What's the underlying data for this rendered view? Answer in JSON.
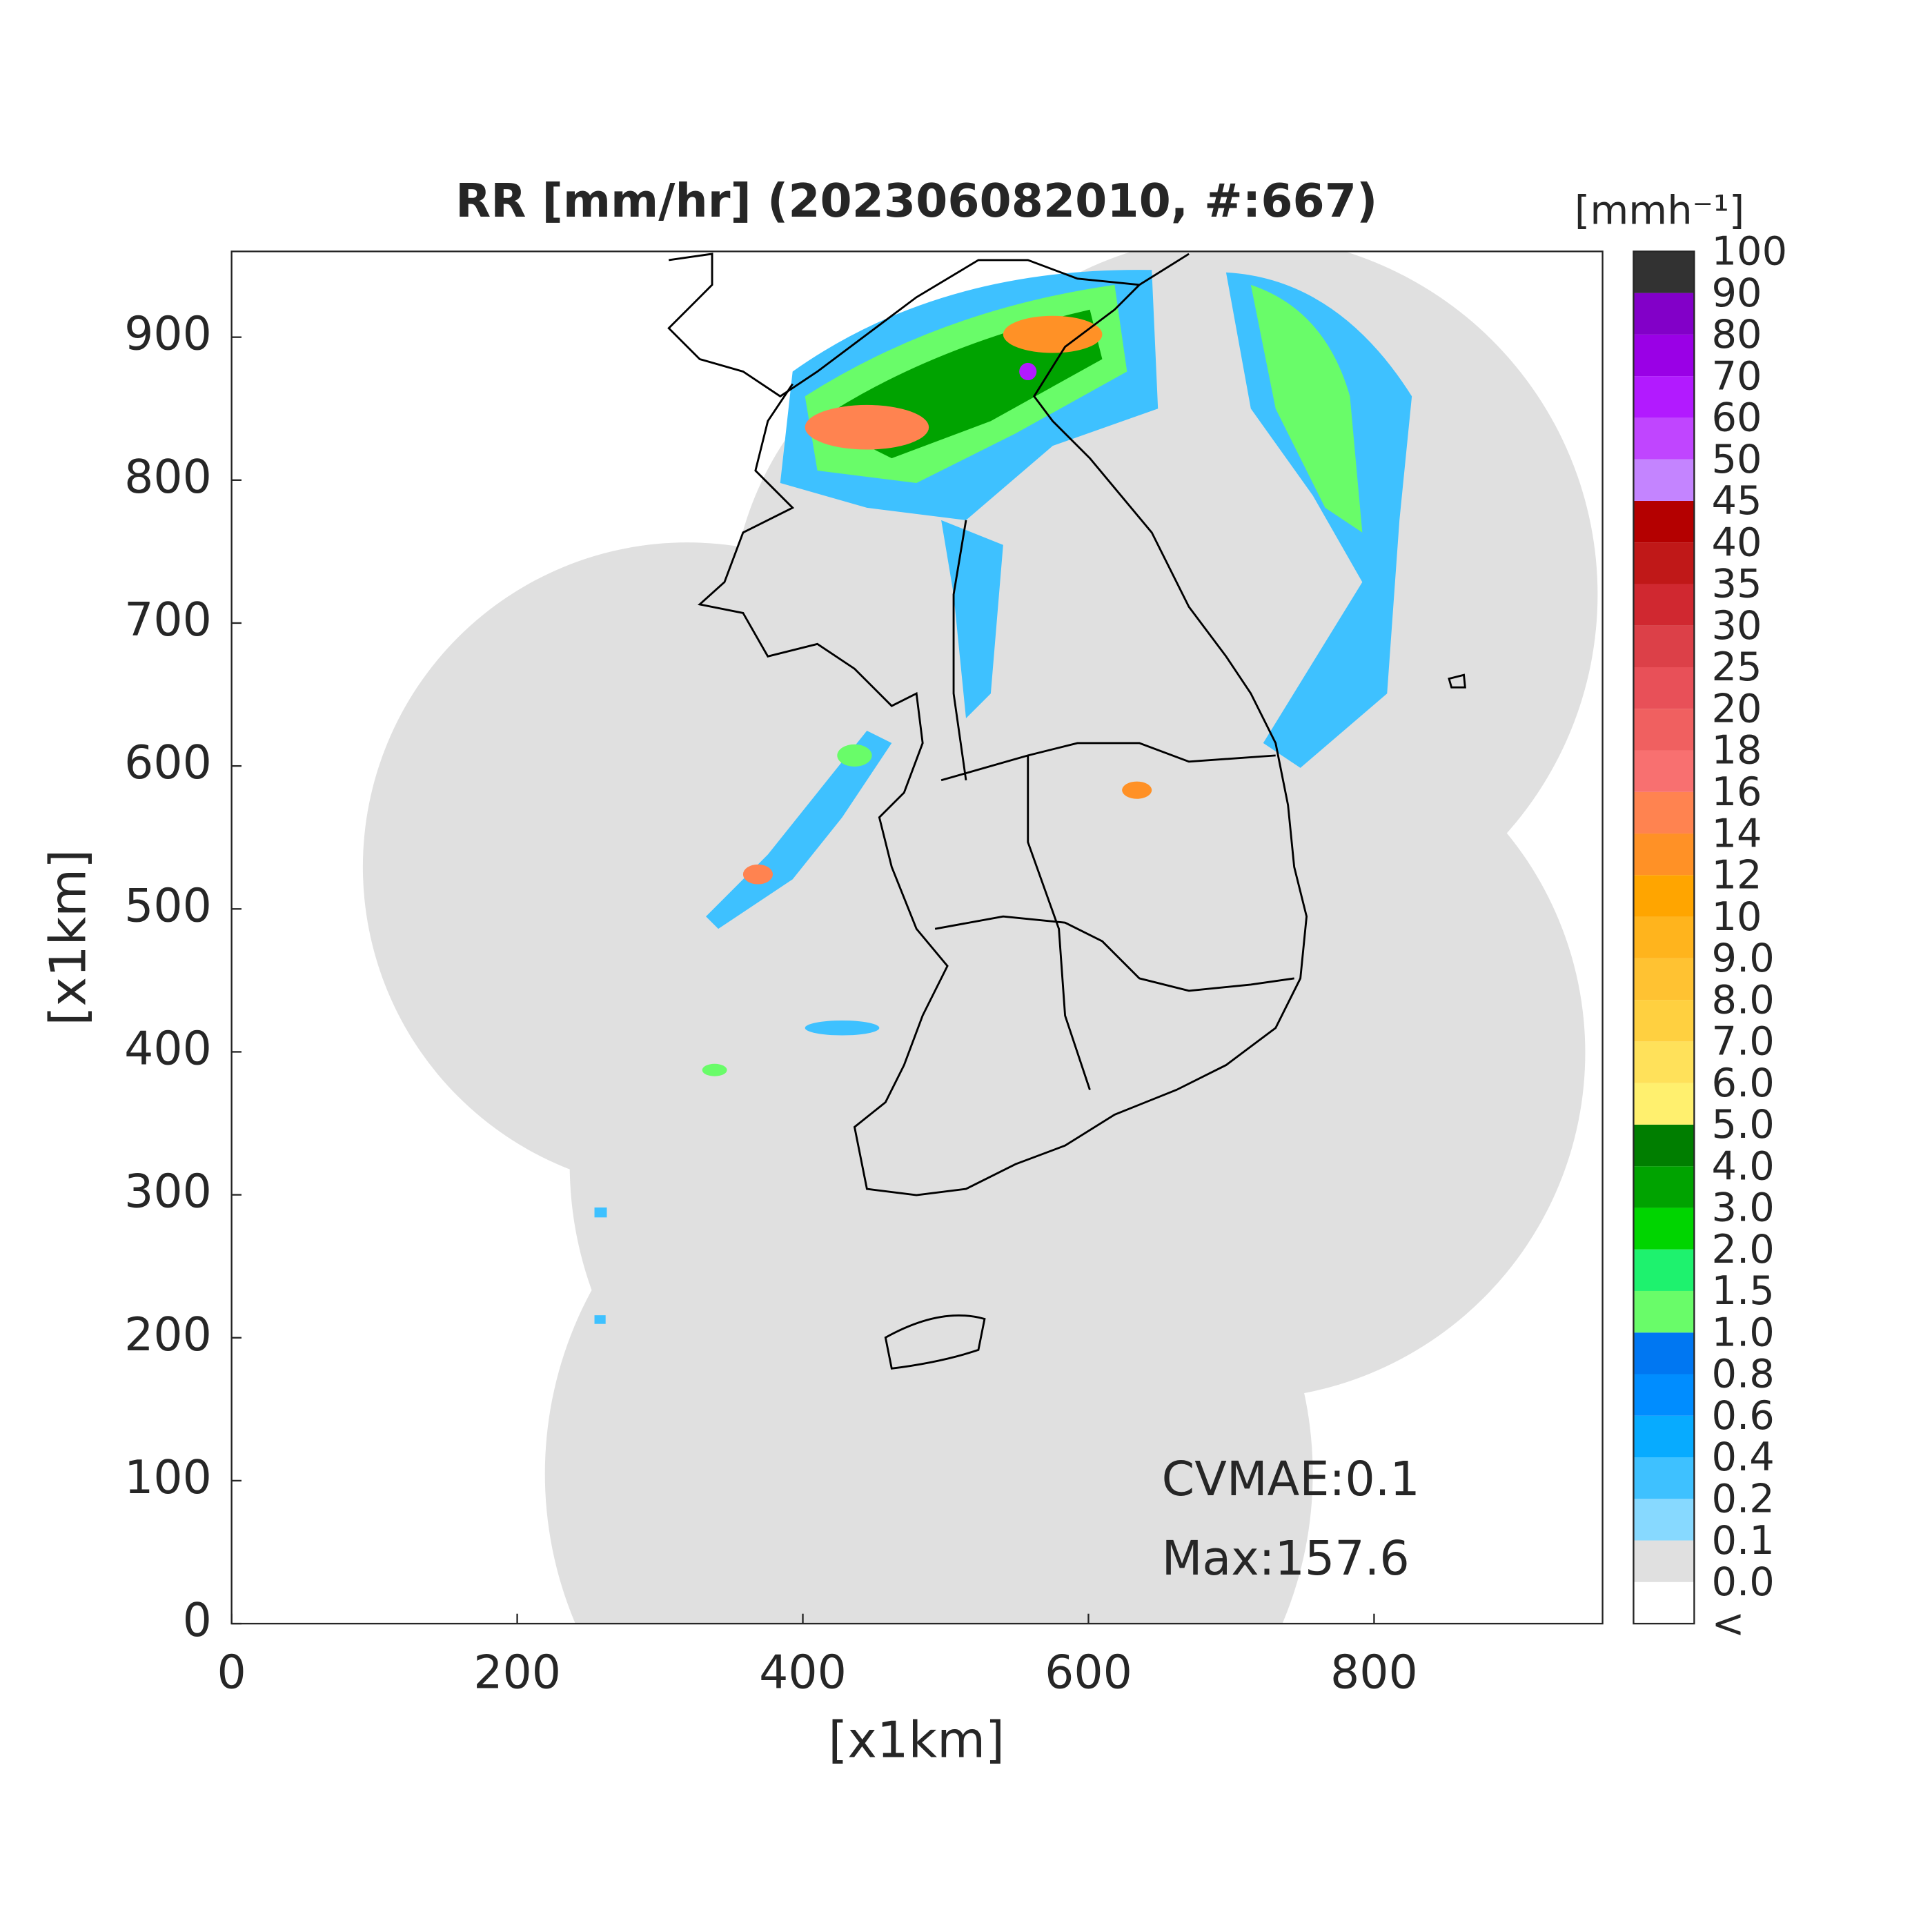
{
  "chart_data": {
    "type": "heatmap",
    "title": "RR [mm/hr] (202306082010, #:667)",
    "x_label": "[x1km]",
    "y_label": "[x1km]",
    "xlim": [
      0,
      960
    ],
    "ylim": [
      0,
      960
    ],
    "xticks": [
      0,
      200,
      400,
      600,
      800
    ],
    "yticks": [
      0,
      100,
      200,
      300,
      400,
      500,
      600,
      700,
      800,
      900
    ],
    "annotations": [
      "CVMAE:0.1",
      "Max:157.6"
    ],
    "colorbar": {
      "title": "[mmh⁻¹]",
      "ticks": [
        "<",
        "0.0",
        "0.1",
        "0.2",
        "0.4",
        "0.6",
        "0.8",
        "1.0",
        "1.5",
        "2.0",
        "3.0",
        "4.0",
        "5.0",
        "6.0",
        "7.0",
        "8.0",
        "9.0",
        "10",
        "12",
        "14",
        "16",
        "18",
        "20",
        "25",
        "30",
        "35",
        "40",
        "45",
        "50",
        "60",
        "70",
        "80",
        "90",
        "100"
      ],
      "colors": [
        "#ffffff",
        "#e0e0e0",
        "#87d9ff",
        "#3ec1ff",
        "#07abff",
        "#008dff",
        "#0077f2",
        "#69fc69",
        "#1ef26e",
        "#00d500",
        "#00a300",
        "#007e00",
        "#fff06e",
        "#ffe15a",
        "#ffd040",
        "#ffc232",
        "#ffb41d",
        "#ffa500",
        "#ff9126",
        "#ff8350",
        "#f87070",
        "#f06060",
        "#e85058",
        "#dc4048",
        "#d02830",
        "#c01818",
        "#b40000",
        "#c484ff",
        "#c045ff",
        "#b21aff",
        "#9a00e6",
        "#8200c8",
        "#323232"
      ]
    }
  }
}
